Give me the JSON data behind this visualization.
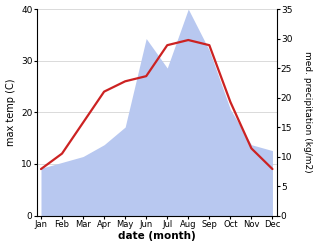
{
  "months": [
    "Jan",
    "Feb",
    "Mar",
    "Apr",
    "May",
    "Jun",
    "Jul",
    "Aug",
    "Sep",
    "Oct",
    "Nov",
    "Dec"
  ],
  "temp": [
    9,
    12,
    18,
    24,
    26,
    27,
    33,
    34,
    33,
    22,
    13,
    9
  ],
  "precip": [
    8,
    9,
    10,
    12,
    15,
    30,
    25,
    35,
    28,
    18,
    12,
    11
  ],
  "temp_color": "#cc2222",
  "precip_color": "#b8c8f0",
  "left_ylim": [
    0,
    40
  ],
  "right_ylim": [
    0,
    35
  ],
  "left_yticks": [
    0,
    10,
    20,
    30,
    40
  ],
  "right_yticks": [
    0,
    5,
    10,
    15,
    20,
    25,
    30,
    35
  ],
  "ylabel_left": "max temp (C)",
  "ylabel_right": "med. precipitation (kg/m2)",
  "xlabel": "date (month)",
  "background_color": "#ffffff",
  "fig_width": 3.18,
  "fig_height": 2.47,
  "dpi": 100
}
